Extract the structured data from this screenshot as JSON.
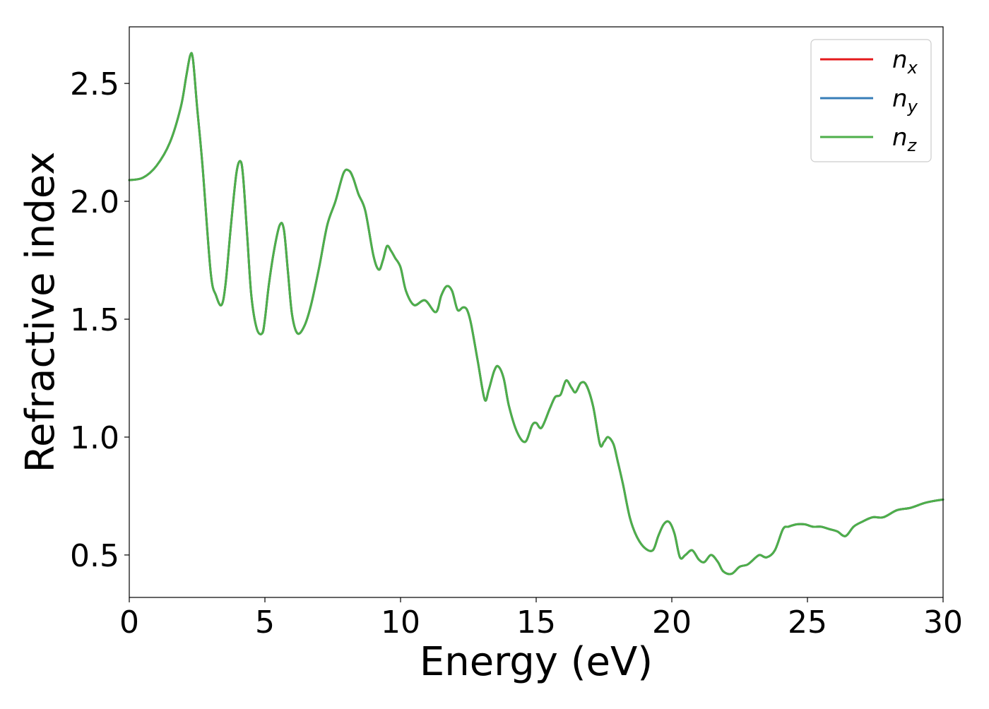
{
  "chart_data": {
    "type": "line",
    "xlabel": "Energy (eV)",
    "ylabel": "Refractive index",
    "xlim": [
      0,
      30
    ],
    "ylim": [
      0.32,
      2.74
    ],
    "xticks": [
      "0",
      "5",
      "10",
      "15",
      "20",
      "25",
      "30"
    ],
    "yticks": [
      "0.5",
      "1.0",
      "1.5",
      "2.0",
      "2.5"
    ],
    "grid": false,
    "legend": "top-right",
    "series": [
      {
        "name": "n_x",
        "label_main": "n",
        "label_sub": "x",
        "color": "#e41a1c",
        "x": [
          0,
          0.5,
          1,
          1.5,
          1.9,
          2.1,
          2.25,
          2.35,
          2.5,
          2.7,
          3,
          3.2,
          3.4,
          3.55,
          3.75,
          3.95,
          4.1,
          4.2,
          4.35,
          4.5,
          4.7,
          4.9,
          5.0,
          5.15,
          5.35,
          5.55,
          5.7,
          5.85,
          6.0,
          6.2,
          6.45,
          6.7,
          7.0,
          7.3,
          7.6,
          7.9,
          8.1,
          8.25,
          8.45,
          8.7,
          9.0,
          9.2,
          9.35,
          9.5,
          9.65,
          9.8,
          10.0,
          10.2,
          10.5,
          10.9,
          11.3,
          11.5,
          11.7,
          11.9,
          12.1,
          12.3,
          12.45,
          12.6,
          12.85,
          13.1,
          13.25,
          13.45,
          13.6,
          13.8,
          14.0,
          14.3,
          14.6,
          14.85,
          15.0,
          15.2,
          15.5,
          15.7,
          15.9,
          16.1,
          16.3,
          16.45,
          16.65,
          16.85,
          17.1,
          17.35,
          17.5,
          17.65,
          17.85,
          18.0,
          18.2,
          18.45,
          18.7,
          19.0,
          19.3,
          19.5,
          19.7,
          19.9,
          20.1,
          20.3,
          20.5,
          20.75,
          21.0,
          21.2,
          21.45,
          21.7,
          21.9,
          22.2,
          22.5,
          22.8,
          23.1,
          23.25,
          23.5,
          23.8,
          24.1,
          24.3,
          24.6,
          24.9,
          25.2,
          25.5,
          25.8,
          26.1,
          26.4,
          26.7,
          27.0,
          27.4,
          27.8,
          28.3,
          28.8,
          29.3,
          29.7,
          30
        ],
        "y": [
          2.09,
          2.1,
          2.15,
          2.25,
          2.4,
          2.53,
          2.62,
          2.6,
          2.4,
          2.15,
          1.7,
          1.6,
          1.56,
          1.65,
          1.9,
          2.12,
          2.17,
          2.1,
          1.85,
          1.6,
          1.46,
          1.44,
          1.5,
          1.65,
          1.8,
          1.9,
          1.88,
          1.7,
          1.52,
          1.44,
          1.47,
          1.56,
          1.72,
          1.9,
          2.0,
          2.12,
          2.13,
          2.1,
          2.03,
          1.96,
          1.77,
          1.71,
          1.75,
          1.81,
          1.79,
          1.76,
          1.72,
          1.62,
          1.56,
          1.58,
          1.53,
          1.6,
          1.64,
          1.62,
          1.54,
          1.55,
          1.54,
          1.48,
          1.32,
          1.16,
          1.2,
          1.28,
          1.3,
          1.25,
          1.13,
          1.02,
          0.98,
          1.05,
          1.06,
          1.04,
          1.12,
          1.17,
          1.18,
          1.24,
          1.21,
          1.19,
          1.23,
          1.22,
          1.13,
          0.97,
          0.98,
          1.0,
          0.97,
          0.9,
          0.8,
          0.66,
          0.58,
          0.53,
          0.52,
          0.58,
          0.63,
          0.64,
          0.59,
          0.49,
          0.5,
          0.52,
          0.48,
          0.47,
          0.5,
          0.47,
          0.43,
          0.42,
          0.45,
          0.46,
          0.49,
          0.5,
          0.49,
          0.52,
          0.61,
          0.62,
          0.63,
          0.63,
          0.62,
          0.62,
          0.61,
          0.6,
          0.58,
          0.62,
          0.64,
          0.66,
          0.66,
          0.69,
          0.7,
          0.72,
          0.73,
          0.735
        ]
      },
      {
        "name": "n_y",
        "label_main": "n",
        "label_sub": "y",
        "color": "#377eb8",
        "same_as": "n_x"
      },
      {
        "name": "n_z",
        "label_main": "n",
        "label_sub": "z",
        "color": "#4daf4a",
        "same_as": "n_x"
      }
    ]
  }
}
